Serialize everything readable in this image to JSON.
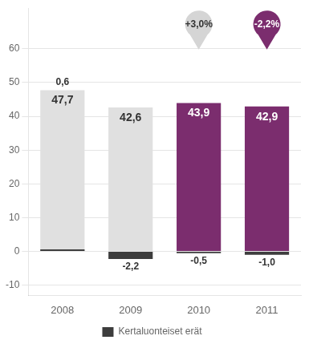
{
  "chart_data": {
    "type": "bar",
    "categories": [
      "2008",
      "2009",
      "2010",
      "2011"
    ],
    "series": [
      {
        "values": [
          47.7,
          42.6,
          43.9,
          42.9
        ],
        "value_labels": [
          "47,7",
          "42,6",
          "43,9",
          "42,9"
        ],
        "colors": [
          "#e0e0e0",
          "#e0e0e0",
          "#7b2d6e",
          "#7b2d6e"
        ]
      },
      {
        "name": "Kertaluonteiset erät",
        "values": [
          0.6,
          -2.2,
          -0.5,
          -1.0
        ],
        "value_labels": [
          "0,6",
          "-2,2",
          "-0,5",
          "-1,0"
        ],
        "color": "#3d3d3d"
      }
    ],
    "annotations": [
      {
        "text": "+3,0%",
        "category": "2010",
        "color": "#d5d5d5"
      },
      {
        "text": "-2,2%",
        "category": "2011",
        "color": "#7b2d6e"
      }
    ],
    "ylim": [
      -13,
      72
    ],
    "yticks": [
      -10,
      0,
      10,
      20,
      30,
      40,
      50,
      60
    ],
    "grid": true,
    "legend": "bottom",
    "data_labels": true
  }
}
